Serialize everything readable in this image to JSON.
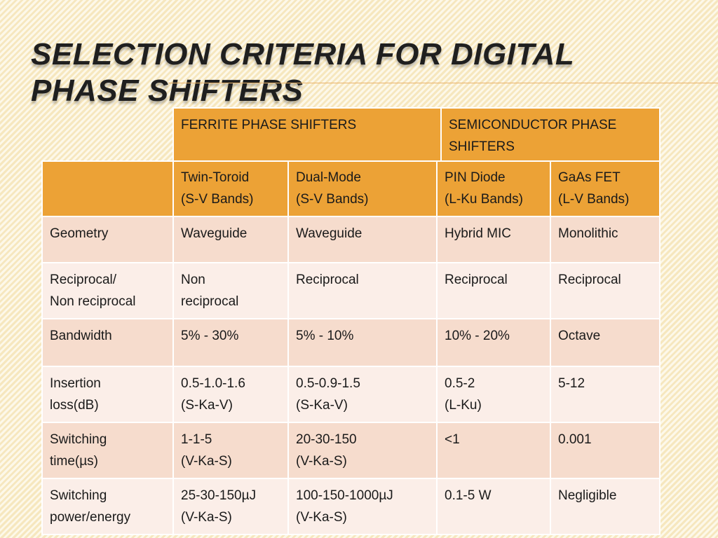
{
  "title": "Selection Criteria for Digital Phase Shifters",
  "group_headers": [
    "FERRITE PHASE SHIFTERS",
    "SEMICONDUCTOR PHASE SHIFTERS"
  ],
  "column_headers": [
    [
      "",
      ""
    ],
    [
      "Twin-Toroid",
      "(S-V Bands)"
    ],
    [
      "Dual-Mode",
      "(S-V Bands)"
    ],
    [
      "PIN Diode",
      "(L-Ku Bands)"
    ],
    [
      "GaAs FET",
      "(L-V Bands)"
    ]
  ],
  "rows": [
    [
      [
        "Geometry"
      ],
      [
        "Waveguide"
      ],
      [
        "Waveguide"
      ],
      [
        "Hybrid MIC"
      ],
      [
        "Monolithic"
      ]
    ],
    [
      [
        "Reciprocal/",
        "Non reciprocal"
      ],
      [
        "Non",
        "reciprocal"
      ],
      [
        "Reciprocal"
      ],
      [
        "Reciprocal"
      ],
      [
        "Reciprocal"
      ]
    ],
    [
      [
        "Bandwidth"
      ],
      [
        "5% - 30%"
      ],
      [
        "5% - 10%"
      ],
      [
        "10% - 20%"
      ],
      [
        "Octave"
      ]
    ],
    [
      [
        "Insertion",
        "loss(dB)"
      ],
      [
        "0.5-1.0-1.6",
        "(S-Ka-V)"
      ],
      [
        "0.5-0.9-1.5",
        "(S-Ka-V)"
      ],
      [
        "0.5-2",
        "(L-Ku)"
      ],
      [
        "5-12"
      ]
    ],
    [
      [
        "Switching",
        "time(µs)"
      ],
      [
        "1-1-5",
        "(V-Ka-S)"
      ],
      [
        "20-30-150",
        "(V-Ka-S)"
      ],
      [
        "<1"
      ],
      [
        "0.001"
      ]
    ],
    [
      [
        "Switching",
        "power/energy"
      ],
      [
        "25-30-150µJ",
        "(V-Ka-S)"
      ],
      [
        "100-150-1000µJ",
        "(V-Ka-S)"
      ],
      [
        "0.1-5 W"
      ],
      [
        "Negligible"
      ]
    ]
  ],
  "colors": {
    "header_orange": "#eca236",
    "row_dark": "#f6dccd",
    "row_light": "#fbeee8",
    "background": "#fbf0cf"
  }
}
